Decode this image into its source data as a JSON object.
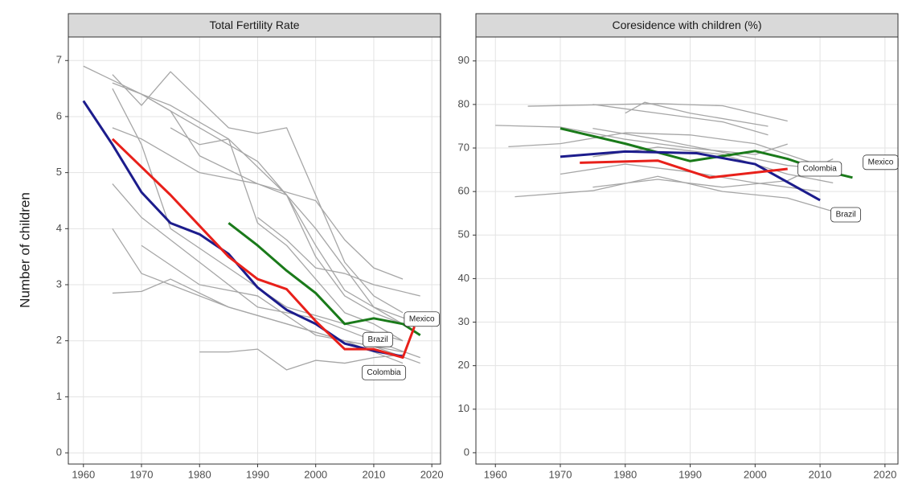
{
  "chart_data": [
    {
      "type": "line",
      "title": "Total Fertility Rate",
      "ylabel": "Number of children",
      "xlim": [
        1957.4,
        2021.5
      ],
      "ylim": [
        -0.2,
        7.42
      ],
      "xticks": [
        1960,
        1970,
        1980,
        1990,
        2000,
        2010,
        2020
      ],
      "yticks": [
        0,
        1,
        2,
        3,
        4,
        5,
        6,
        7
      ],
      "grid": true,
      "series": [
        {
          "color": "#a6a6a6",
          "x": [
            1960,
            1970,
            1980,
            1990,
            2000,
            2010,
            2018
          ],
          "values": [
            6.9,
            6.4,
            5.8,
            5.2,
            4.0,
            2.6,
            2.3
          ]
        },
        {
          "color": "#a6a6a6",
          "x": [
            1965,
            1970,
            1975,
            1980,
            1985,
            1990,
            1995,
            2000,
            2005,
            2010,
            2015
          ],
          "values": [
            6.75,
            6.2,
            6.8,
            6.3,
            5.8,
            5.7,
            5.8,
            4.6,
            3.4,
            2.8,
            2.5
          ]
        },
        {
          "color": "#a6a6a6",
          "x": [
            1965,
            1975,
            1985,
            1995,
            2000,
            2005,
            2010,
            2015
          ],
          "values": [
            6.6,
            6.2,
            5.6,
            4.6,
            3.5,
            2.8,
            2.5,
            2.3
          ]
        },
        {
          "color": "#a6a6a6",
          "x": [
            1965,
            1970,
            1975,
            1985,
            1995,
            2005,
            2015
          ],
          "values": [
            6.5,
            5.5,
            4.0,
            3.3,
            2.6,
            2.3,
            2.0
          ]
        },
        {
          "color": "#a6a6a6",
          "x": [
            1965,
            1970,
            1980,
            1990,
            1995,
            2000,
            2005,
            2010,
            2015
          ],
          "values": [
            5.8,
            5.6,
            5.0,
            4.8,
            4.6,
            3.7,
            2.9,
            2.6,
            2.3
          ]
        },
        {
          "color": "#a6a6a6",
          "x": [
            1965,
            1970,
            1980,
            1990,
            2000,
            2010,
            2018
          ],
          "values": [
            4.8,
            4.2,
            3.4,
            2.6,
            2.4,
            2.0,
            1.7
          ]
        },
        {
          "color": "#a6a6a6",
          "x": [
            1965,
            1970,
            1975,
            1985,
            1995,
            2005,
            2015
          ],
          "values": [
            4.0,
            3.2,
            3.0,
            2.6,
            2.3,
            2.0,
            1.8
          ]
        },
        {
          "color": "#a6a6a6",
          "x": [
            1965,
            1970,
            1975,
            1985,
            1995,
            2005,
            2015
          ],
          "values": [
            2.85,
            2.88,
            3.1,
            2.6,
            2.3,
            2.0,
            1.6
          ]
        },
        {
          "color": "#a6a6a6",
          "x": [
            1980,
            1985,
            1990,
            1995,
            2000,
            2005,
            2010,
            2015
          ],
          "values": [
            1.8,
            1.8,
            1.85,
            1.48,
            1.65,
            1.6,
            1.7,
            1.75
          ]
        },
        {
          "color": "#a6a6a6",
          "x": [
            1975,
            1980,
            1985,
            1990,
            1995,
            2000,
            2005,
            2010,
            2015
          ],
          "values": [
            5.8,
            5.5,
            5.6,
            4.1,
            3.7,
            3.1,
            2.5,
            2.3,
            2.0
          ]
        },
        {
          "color": "#a6a6a6",
          "x": [
            1970,
            1975,
            1980,
            1990,
            2000,
            2005,
            2010,
            2015
          ],
          "values": [
            6.4,
            6.1,
            5.3,
            4.8,
            4.5,
            3.8,
            3.3,
            3.1
          ]
        },
        {
          "color": "#a6a6a6",
          "x": [
            1990,
            1995,
            2000,
            2005,
            2010,
            2018
          ],
          "values": [
            4.2,
            3.8,
            3.3,
            3.2,
            3.0,
            2.8
          ]
        },
        {
          "color": "#a6a6a6",
          "x": [
            1970,
            1980,
            1990,
            2000,
            2010,
            2018
          ],
          "values": [
            3.7,
            3.0,
            2.8,
            2.1,
            1.9,
            1.6
          ]
        },
        {
          "name": "Mexico",
          "color": "#1a7a1a",
          "x": [
            1985,
            1990,
            1995,
            2000,
            2005,
            2010,
            2015,
            2018
          ],
          "values": [
            4.1,
            3.7,
            3.25,
            2.85,
            2.3,
            2.4,
            2.3,
            2.1
          ]
        },
        {
          "name": "Brazil",
          "color": "#1c1c8c",
          "x": [
            1960,
            1965,
            1970,
            1975,
            1980,
            1985,
            1990,
            1995,
            2000,
            2005,
            2010,
            2015
          ],
          "values": [
            6.28,
            5.5,
            4.65,
            4.1,
            3.9,
            3.55,
            2.95,
            2.55,
            2.3,
            1.95,
            1.82,
            1.72
          ]
        },
        {
          "name": "Colombia",
          "color": "#e8201a",
          "x": [
            1965,
            1970,
            1975,
            1980,
            1985,
            1990,
            1995,
            2000,
            2005,
            2010,
            2015,
            2017
          ],
          "values": [
            5.6,
            5.1,
            4.6,
            4.05,
            3.5,
            3.1,
            2.92,
            2.35,
            1.85,
            1.85,
            1.7,
            2.25
          ]
        }
      ]
    },
    {
      "type": "line",
      "title": "Coresidence with children (%)",
      "xlim": [
        1957.0,
        2022.0
      ],
      "ylim": [
        -2.6,
        95.5
      ],
      "xticks": [
        1960,
        1970,
        1980,
        1990,
        2000,
        2010,
        2020
      ],
      "yticks": [
        0,
        10,
        20,
        30,
        40,
        50,
        60,
        70,
        80,
        90
      ],
      "grid": true,
      "series": [
        {
          "color": "#a6a6a6",
          "x": [
            1965,
            1985,
            1995,
            2005
          ],
          "values": [
            79.6,
            80.2,
            79.7,
            76.2
          ]
        },
        {
          "color": "#a6a6a6",
          "x": [
            1960,
            1970,
            1980,
            1990,
            2000,
            2005
          ],
          "values": [
            75.2,
            74.8,
            72,
            70,
            68.5,
            70.9
          ]
        },
        {
          "color": "#a6a6a6",
          "x": [
            1962,
            1970,
            1980,
            1990,
            2000,
            2010
          ],
          "values": [
            70.3,
            71,
            73.5,
            73,
            71,
            66
          ]
        },
        {
          "color": "#a6a6a6",
          "x": [
            1963,
            1975,
            1985,
            1995,
            2005,
            2013
          ],
          "values": [
            58.8,
            60.2,
            63.5,
            60,
            58.5,
            55
          ]
        },
        {
          "color": "#a6a6a6",
          "x": [
            1975,
            1985,
            1995,
            2002
          ],
          "values": [
            80,
            78,
            76,
            73
          ]
        },
        {
          "color": "#a6a6a6",
          "x": [
            1980,
            1983,
            1990,
            2002
          ],
          "values": [
            78,
            80.5,
            78,
            75
          ]
        },
        {
          "color": "#a6a6a6",
          "x": [
            1975,
            1985,
            1995,
            2005,
            2012
          ],
          "values": [
            74.5,
            72,
            69,
            66,
            65
          ]
        },
        {
          "color": "#a6a6a6",
          "x": [
            1970,
            1980,
            1990,
            2000,
            2010
          ],
          "values": [
            64,
            66.3,
            64.5,
            62,
            60
          ]
        },
        {
          "color": "#a6a6a6",
          "x": [
            1975,
            1985,
            1995,
            2005,
            2012
          ],
          "values": [
            61,
            62.8,
            61,
            62.5,
            67.5
          ]
        },
        {
          "color": "#a6a6a6",
          "x": [
            1975,
            1985,
            1995,
            2005,
            2012
          ],
          "values": [
            68,
            70.2,
            68.5,
            64,
            62
          ]
        },
        {
          "name": "Mexico",
          "color": "#1a7a1a",
          "x": [
            1970,
            1980,
            1990,
            2000,
            2005,
            2010,
            2015
          ],
          "values": [
            74.5,
            71,
            67,
            69.3,
            67.5,
            65,
            63.2
          ]
        },
        {
          "name": "Brazil",
          "color": "#1c1c8c",
          "x": [
            1970,
            1980,
            1991,
            2000,
            2010
          ],
          "values": [
            68,
            69.2,
            68.8,
            66.3,
            58
          ]
        },
        {
          "name": "Colombia",
          "color": "#e8201a",
          "x": [
            1973,
            1985,
            1993,
            2005
          ],
          "values": [
            66.6,
            67.1,
            63.2,
            65.2
          ]
        }
      ]
    }
  ]
}
